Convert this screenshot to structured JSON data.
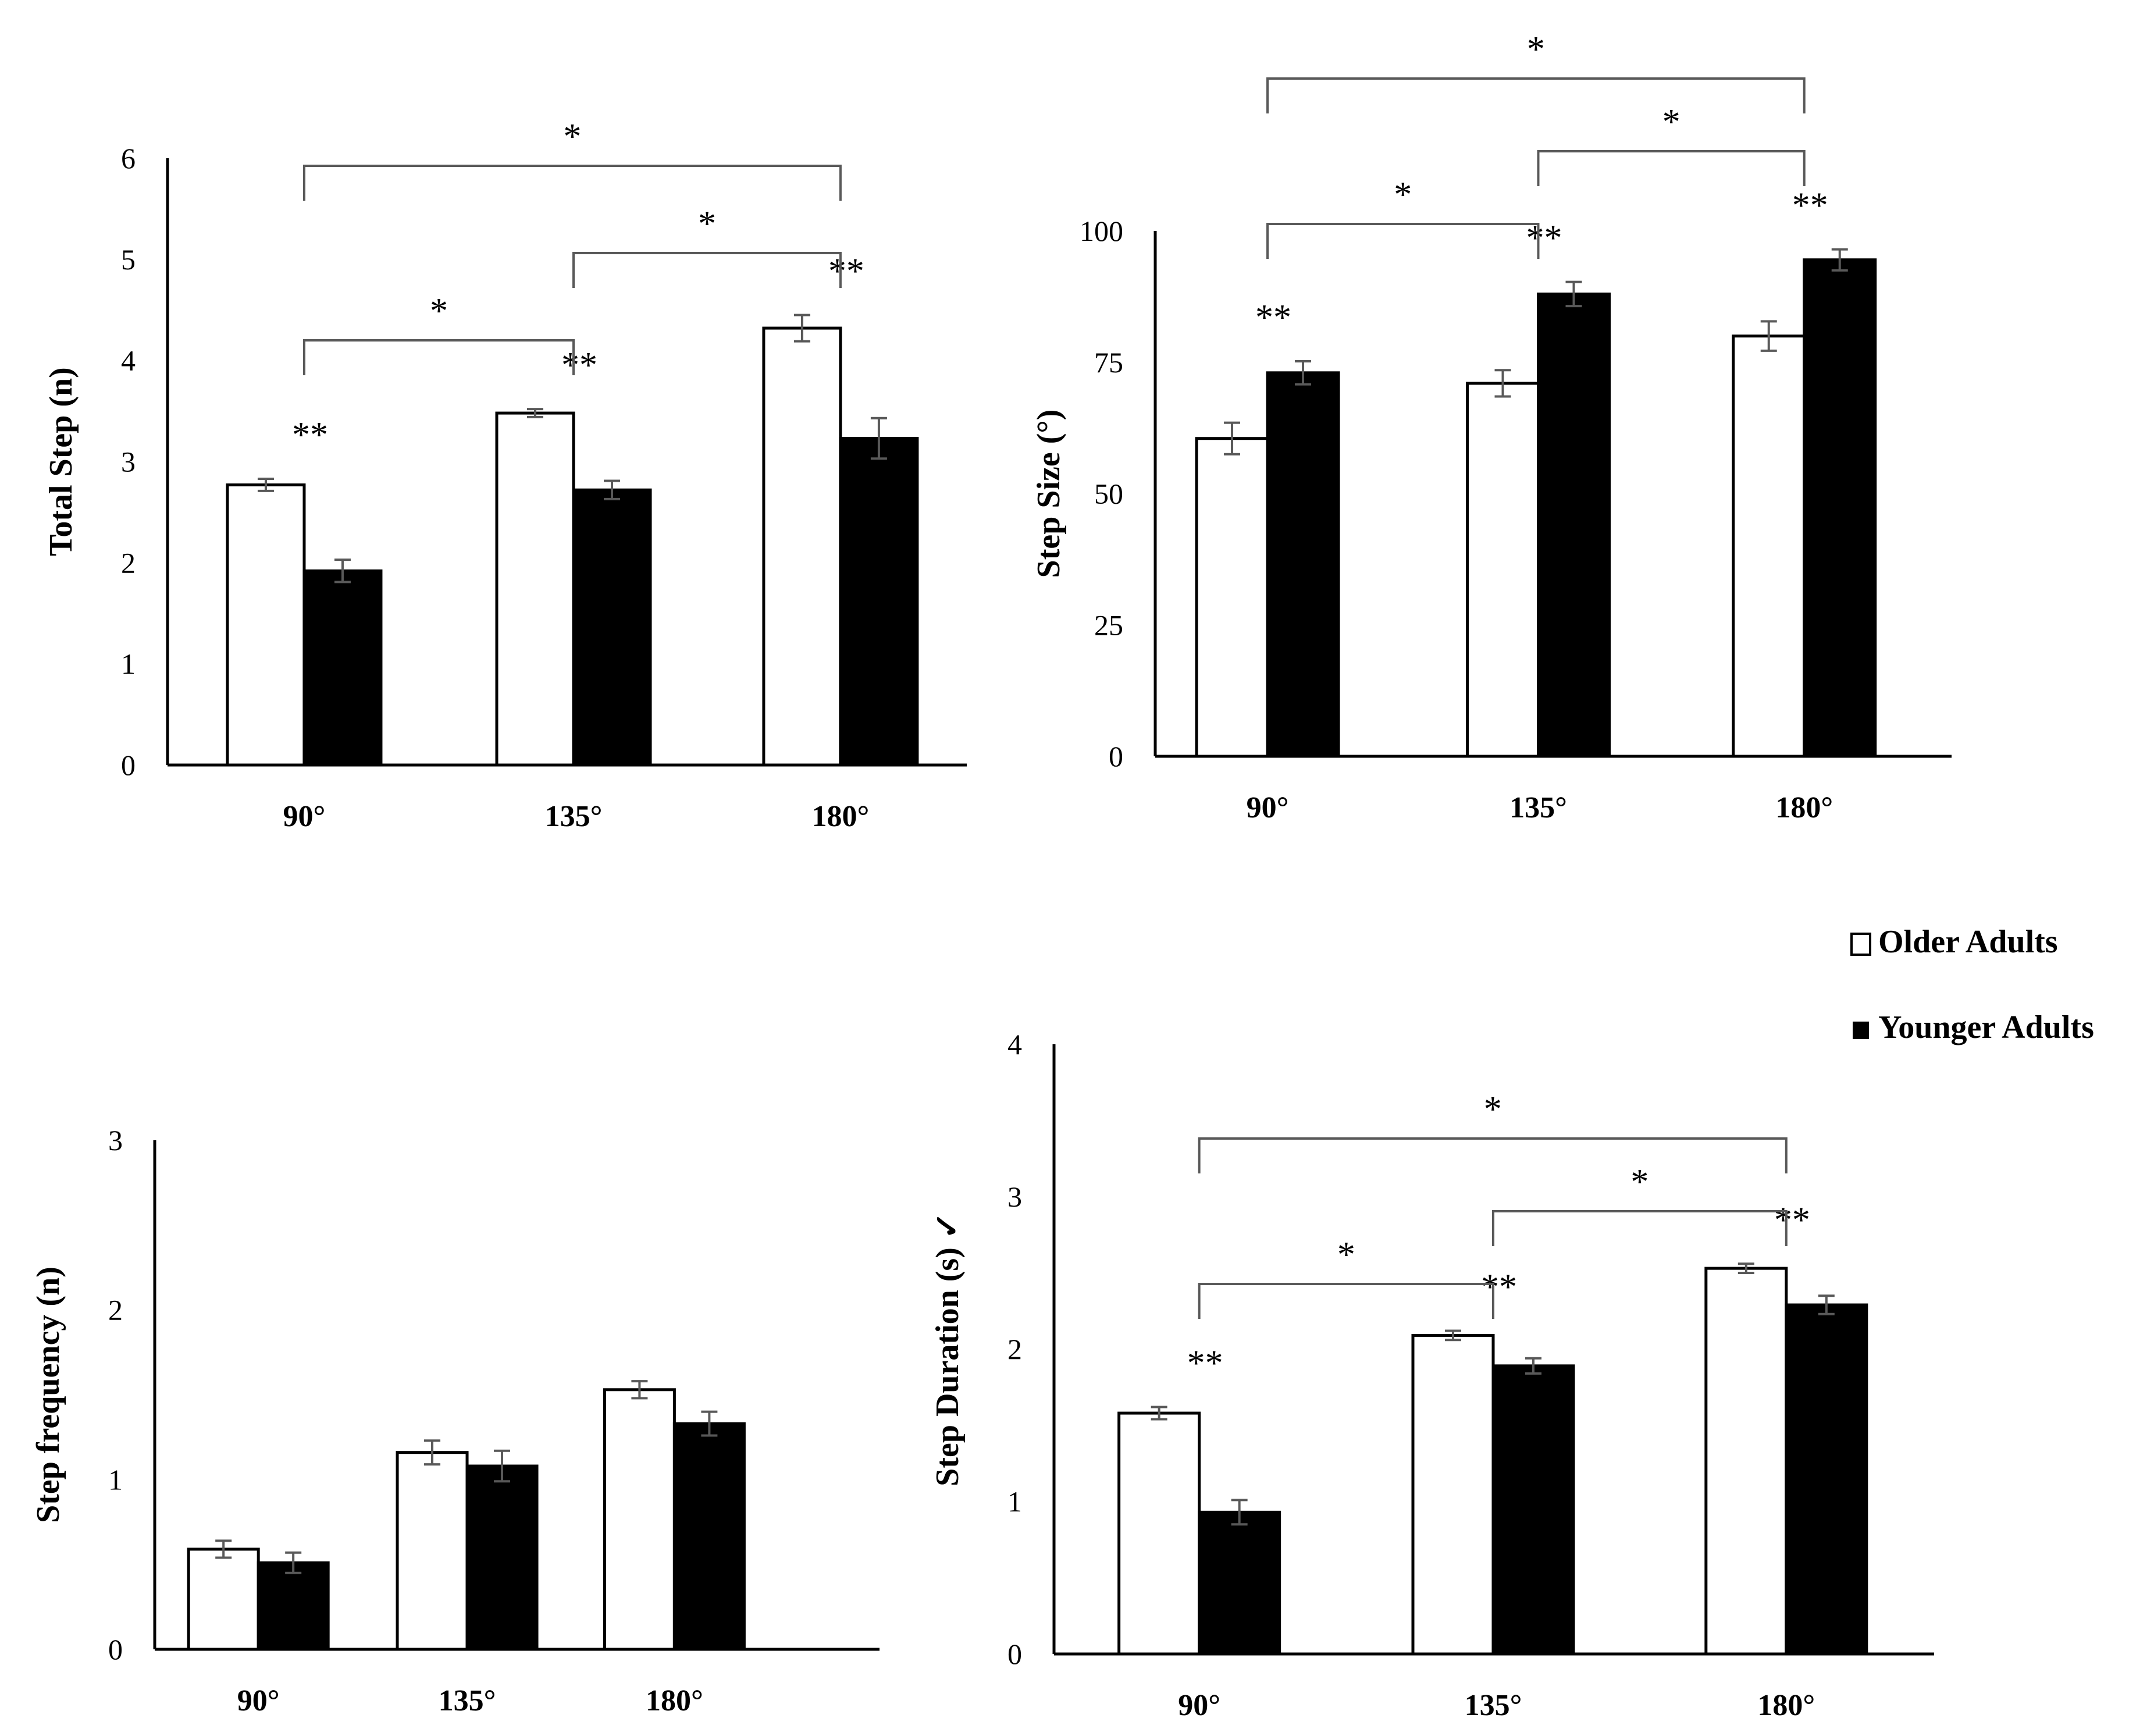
{
  "legend": {
    "older_label": "Older Adults",
    "younger_label": "Younger Adults"
  },
  "colors": {
    "older_fill": "#ffffff",
    "younger_fill": "#000000",
    "error_bar": "#595959",
    "axis": "#000000",
    "bracket": "#595959"
  },
  "chart_data": [
    {
      "type": "bar",
      "name": "total-step",
      "title": "",
      "categories": [
        "90°",
        "135°",
        "180°"
      ],
      "series": [
        {
          "name": "Older Adults",
          "values": [
            2.77,
            3.48,
            4.32
          ],
          "errors": [
            0.06,
            0.04,
            0.13
          ]
        },
        {
          "name": "Younger Adults",
          "values": [
            1.92,
            2.72,
            3.23
          ],
          "errors": [
            0.11,
            0.09,
            0.2
          ]
        }
      ],
      "ylabel": "Total Step (n)",
      "xlabel": "",
      "ylim": [
        0,
        6
      ],
      "yticks": [
        0,
        1,
        2,
        3,
        4,
        5,
        6
      ],
      "pair_labels": [
        "**",
        "**",
        "**"
      ],
      "comparisons": [
        {
          "from": 0,
          "to": 2,
          "label": "*"
        },
        {
          "from": 1,
          "to": 2,
          "label": "*"
        },
        {
          "from": 0,
          "to": 1,
          "label": "*"
        }
      ]
    },
    {
      "type": "bar",
      "name": "step-size",
      "title": "",
      "categories": [
        "90°",
        "135°",
        "180°"
      ],
      "series": [
        {
          "name": "Older Adults",
          "values": [
            60.5,
            71,
            80
          ],
          "errors": [
            3,
            2.5,
            2.8
          ]
        },
        {
          "name": "Younger Adults",
          "values": [
            73,
            88,
            94.5
          ],
          "errors": [
            2.2,
            2.3,
            2
          ]
        }
      ],
      "ylabel": "Step Size (°)",
      "xlabel": "",
      "ylim": [
        0,
        100
      ],
      "yticks": [
        0,
        25,
        50,
        75,
        100
      ],
      "pair_labels": [
        "**",
        "**",
        "**"
      ],
      "comparisons": [
        {
          "from": 0,
          "to": 2,
          "label": "*"
        },
        {
          "from": 1,
          "to": 2,
          "label": "*"
        },
        {
          "from": 0,
          "to": 1,
          "label": "*"
        }
      ]
    },
    {
      "type": "bar",
      "name": "step-frequency",
      "title": "",
      "categories": [
        "90°",
        "135°",
        "180°"
      ],
      "series": [
        {
          "name": "Older Adults",
          "values": [
            0.59,
            1.16,
            1.53
          ],
          "errors": [
            0.05,
            0.07,
            0.05
          ]
        },
        {
          "name": "Younger Adults",
          "values": [
            0.51,
            1.08,
            1.33
          ],
          "errors": [
            0.06,
            0.09,
            0.07
          ]
        }
      ],
      "ylabel": "Step frequency (n)",
      "xlabel": "",
      "ylim": [
        0,
        3
      ],
      "yticks": [
        0,
        1,
        2,
        3
      ],
      "pair_labels": [],
      "comparisons": []
    },
    {
      "type": "bar",
      "name": "step-duration",
      "title": "",
      "categories": [
        "90°",
        "135°",
        "180°"
      ],
      "series": [
        {
          "name": "Older Adults",
          "values": [
            1.58,
            2.09,
            2.53
          ],
          "errors": [
            0.04,
            0.03,
            0.03
          ]
        },
        {
          "name": "Younger Adults",
          "values": [
            0.93,
            1.89,
            2.29
          ],
          "errors": [
            0.08,
            0.05,
            0.06
          ]
        }
      ],
      "ylabel": "Step Duration (s) ✓",
      "xlabel": "",
      "ylim": [
        0,
        4
      ],
      "yticks": [
        0,
        1,
        2,
        3,
        4
      ],
      "pair_labels": [
        "**",
        "**",
        "**"
      ],
      "comparisons": [
        {
          "from": 0,
          "to": 2,
          "label": "*"
        },
        {
          "from": 1,
          "to": 2,
          "label": "*"
        },
        {
          "from": 0,
          "to": 1,
          "label": "*"
        }
      ]
    }
  ]
}
